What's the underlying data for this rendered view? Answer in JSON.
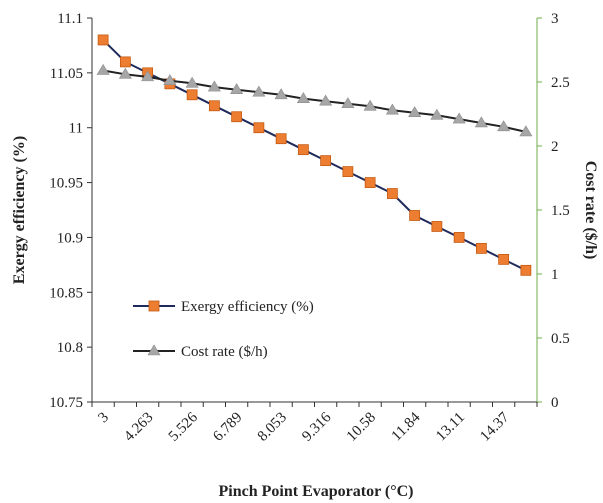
{
  "chart_data": {
    "type": "line",
    "title": "",
    "xlabel": "Pinch Point Evaporator (°C)",
    "ylabel_left": "Exergy efficiency (%)",
    "ylabel_right": "Cost rate ($/h)",
    "x_tick_labels": [
      "3",
      "4.263",
      "5.526",
      "6.789",
      "8.053",
      "9.316",
      "10.58",
      "11.84",
      "13.11",
      "14.37"
    ],
    "x": [
      3,
      3.632,
      4.263,
      4.895,
      5.526,
      6.158,
      6.789,
      7.421,
      8.053,
      8.684,
      9.316,
      9.947,
      10.58,
      11.21,
      11.84,
      12.47,
      13.11,
      13.74,
      14.37,
      15
    ],
    "ylim_left": [
      10.75,
      11.1
    ],
    "yticks_left": [
      "10.75",
      "10.8",
      "10.85",
      "10.9",
      "10.95",
      "11",
      "11.05",
      "11.1"
    ],
    "ylim_right": [
      0,
      3
    ],
    "yticks_right": [
      "0",
      "0.5",
      "1",
      "1.5",
      "2",
      "2.5",
      "3"
    ],
    "series": [
      {
        "name": "Exergy efficiency (%)",
        "axis": "left",
        "color": "#1f2a5c",
        "marker": "square",
        "marker_color": "#ed7d31",
        "values": [
          11.08,
          11.06,
          11.05,
          11.04,
          11.03,
          11.02,
          11.01,
          11.0,
          10.99,
          10.98,
          10.97,
          10.96,
          10.95,
          10.94,
          10.92,
          10.91,
          10.9,
          10.89,
          10.88,
          10.87
        ]
      },
      {
        "name": "Cost rate ($/h)",
        "axis": "right",
        "color": "#222222",
        "marker": "triangle",
        "marker_color": "#a6a6a6",
        "values": [
          2.59,
          2.56,
          2.54,
          2.51,
          2.49,
          2.46,
          2.44,
          2.42,
          2.4,
          2.37,
          2.35,
          2.33,
          2.31,
          2.28,
          2.26,
          2.24,
          2.21,
          2.18,
          2.15,
          2.11
        ]
      }
    ],
    "legend_position": "bottom-left",
    "grid": false,
    "right_axis_color": "#70ad47"
  }
}
